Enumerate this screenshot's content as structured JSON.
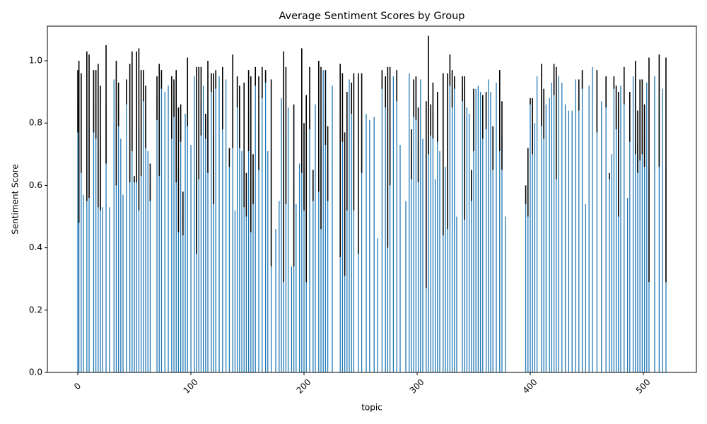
{
  "chart_data": {
    "type": "bar",
    "title": "Average Sentiment Scores by Group",
    "xlabel": "topic",
    "ylabel": "Sentiment Score",
    "color": "#1f77b4",
    "error_color": "#000000",
    "xlim": [
      -26.9,
      546.9
    ],
    "ylim": [
      0,
      1.111
    ],
    "xticks": [
      0,
      100,
      200,
      300,
      400,
      500
    ],
    "yticks": [
      {
        "value": 0,
        "label": "0.0"
      },
      {
        "value": 0.2,
        "label": "0.2"
      },
      {
        "value": 0.4,
        "label": "0.4"
      },
      {
        "value": 0.6,
        "label": "0.6"
      },
      {
        "value": 0.8,
        "label": "0.8"
      },
      {
        "value": 1,
        "label": "1.0"
      }
    ],
    "x": [
      0,
      1,
      3,
      5,
      8,
      10,
      14,
      16,
      18,
      20,
      22,
      25,
      28,
      32,
      34,
      36,
      38,
      40,
      43,
      46,
      48,
      50,
      52,
      54,
      56,
      58,
      60,
      62,
      64,
      70,
      72,
      74,
      77,
      80,
      83,
      85,
      87,
      89,
      91,
      93,
      95,
      97,
      100,
      103,
      105,
      107,
      109,
      111,
      113,
      115,
      118,
      120,
      122,
      125,
      128,
      131,
      134,
      137,
      139,
      141,
      143,
      145,
      147,
      149,
      151,
      153,
      155,
      157,
      160,
      163,
      166,
      168,
      171,
      175,
      178,
      180,
      182,
      184,
      186,
      189,
      191,
      193,
      196,
      198,
      200,
      202,
      205,
      208,
      210,
      213,
      215,
      217,
      219,
      221,
      225,
      232,
      234,
      236,
      238,
      240,
      242,
      244,
      248,
      251,
      255,
      258,
      262,
      265,
      269,
      272,
      274,
      276,
      279,
      282,
      285,
      290,
      293,
      295,
      297,
      299,
      301,
      303,
      305,
      308,
      310,
      312,
      314,
      316,
      318,
      320,
      323,
      325,
      327,
      329,
      331,
      333,
      335,
      340,
      342,
      344,
      346,
      348,
      350,
      352,
      354,
      356,
      358,
      361,
      363,
      365,
      367,
      370,
      373,
      375,
      378,
      396,
      398,
      400,
      402,
      404,
      406,
      410,
      412,
      414,
      417,
      419,
      421,
      423,
      425,
      428,
      431,
      434,
      437,
      440,
      443,
      446,
      449,
      452,
      455,
      459,
      463,
      467,
      470,
      472,
      474,
      476,
      478,
      480,
      483,
      486,
      488,
      491,
      493,
      495,
      497,
      499,
      501,
      503,
      505,
      510,
      514,
      517,
      520
    ],
    "values": [
      0.87,
      0.74,
      0.8,
      0.57,
      0.79,
      0.79,
      0.87,
      0.86,
      0.76,
      0.72,
      0.53,
      0.86,
      0.53,
      0.94,
      0.8,
      0.86,
      0.75,
      0.57,
      0.9,
      0.8,
      0.87,
      0.62,
      0.82,
      0.78,
      0.8,
      0.92,
      0.82,
      0.71,
      0.61,
      0.88,
      0.81,
      0.94,
      0.9,
      0.92,
      0.85,
      0.88,
      0.79,
      0.65,
      0.8,
      0.51,
      0.83,
      0.9,
      0.73,
      0.95,
      0.68,
      0.8,
      0.87,
      0.92,
      0.79,
      0.82,
      0.93,
      0.75,
      0.94,
      0.95,
      0.88,
      0.94,
      0.69,
      0.87,
      0.52,
      0.9,
      0.82,
      0.71,
      0.73,
      0.57,
      0.84,
      0.7,
      0.62,
      0.95,
      0.8,
      0.93,
      0.95,
      0.71,
      0.64,
      0.46,
      0.55,
      0.88,
      0.66,
      0.76,
      0.85,
      0.34,
      0.6,
      0.54,
      0.67,
      0.84,
      0.66,
      0.59,
      0.88,
      0.6,
      0.86,
      0.79,
      0.72,
      0.97,
      0.85,
      0.67,
      0.92,
      0.68,
      0.85,
      0.54,
      0.71,
      0.94,
      0.88,
      0.74,
      0.67,
      0.8,
      0.83,
      0.81,
      0.82,
      0.43,
      0.94,
      0.9,
      0.69,
      0.79,
      0.95,
      0.92,
      0.73,
      0.55,
      0.96,
      0.7,
      0.88,
      0.88,
      0.73,
      0.94,
      0.75,
      0.57,
      0.89,
      0.81,
      0.84,
      0.62,
      0.82,
      0.71,
      0.7,
      0.66,
      0.71,
      0.97,
      0.91,
      0.93,
      0.5,
      0.91,
      0.72,
      0.85,
      0.83,
      0.6,
      0.81,
      0.91,
      0.92,
      0.9,
      0.82,
      0.84,
      0.94,
      0.9,
      0.72,
      0.93,
      0.84,
      0.76,
      0.5,
      0.57,
      0.61,
      0.87,
      0.79,
      0.8,
      0.95,
      0.89,
      0.83,
      0.86,
      0.88,
      0.93,
      0.94,
      0.8,
      0.95,
      0.93,
      0.86,
      0.84,
      0.84,
      0.94,
      0.89,
      0.94,
      0.54,
      0.92,
      0.98,
      0.87,
      0.87,
      0.9,
      0.63,
      0.7,
      0.93,
      0.85,
      0.7,
      0.92,
      0.92,
      0.56,
      0.82,
      0.95,
      0.85,
      0.74,
      0.81,
      0.82,
      0.76,
      0.93,
      0.65,
      0.95,
      0.84,
      0.91,
      0.65
    ],
    "errors": [
      0.1,
      0.26,
      0.16,
      0,
      0.24,
      0.23,
      0.1,
      0.11,
      0.23,
      0.2,
      0,
      0.19,
      0,
      0,
      0.2,
      0.07,
      0,
      0,
      0.04,
      0.19,
      0.16,
      0.01,
      0.21,
      0.26,
      0.17,
      0.05,
      0.1,
      0,
      0.06,
      0.07,
      0.18,
      0.03,
      0,
      0,
      0.1,
      0.06,
      0.18,
      0.2,
      0.06,
      0.07,
      0,
      0.11,
      0,
      0,
      0.3,
      0.18,
      0.11,
      0,
      0.04,
      0.18,
      0.03,
      0.21,
      0.03,
      0,
      0.1,
      0,
      0.03,
      0.15,
      0,
      0.05,
      0.1,
      0,
      0.2,
      0.07,
      0.13,
      0.25,
      0.08,
      0.03,
      0.15,
      0.05,
      0.02,
      0,
      0.3,
      0,
      0,
      0,
      0.37,
      0.22,
      0,
      0,
      0.26,
      0,
      0,
      0.2,
      0.14,
      0.3,
      0.1,
      0.05,
      0,
      0.21,
      0.26,
      0,
      0.12,
      0.12,
      0,
      0.31,
      0.11,
      0.23,
      0.19,
      0,
      0.05,
      0.22,
      0.29,
      0.16,
      0,
      0,
      0,
      0,
      0.03,
      0.05,
      0.29,
      0.19,
      0,
      0.05,
      0,
      0,
      0,
      0.08,
      0.06,
      0.07,
      0.12,
      0,
      0,
      0.3,
      0.19,
      0.05,
      0.09,
      0,
      0.08,
      0,
      0.26,
      0,
      0.25,
      0.05,
      0.06,
      0.02,
      0,
      0.04,
      0.23,
      0,
      0,
      0.05,
      0.1,
      0,
      0,
      0,
      0.07,
      0.06,
      0,
      0,
      0.07,
      0,
      0.13,
      0.11,
      0,
      0.03,
      0.11,
      0.01,
      0.09,
      0,
      0,
      0.1,
      0.08,
      0,
      0,
      0,
      0.05,
      0.18,
      0,
      0,
      0,
      0,
      0,
      0,
      0.05,
      0.03,
      0,
      0,
      0,
      0.1,
      0,
      0.05,
      0.01,
      0,
      0.02,
      0.07,
      0.2,
      0,
      0.06,
      0,
      0.08,
      0,
      0.15,
      0.1,
      0.13,
      0.12,
      0.1,
      0,
      0.36,
      0,
      0.18,
      0,
      0.36
    ]
  }
}
